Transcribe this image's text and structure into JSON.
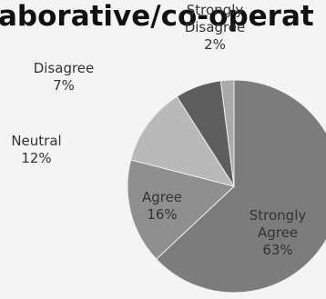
{
  "chart_data": {
    "type": "pie",
    "title": "aborative/co-operat",
    "categories": [
      "Strongly Agree",
      "Agree",
      "Neutral",
      "Disagree",
      "Strongly Disagree"
    ],
    "values": [
      63,
      16,
      12,
      7,
      2
    ],
    "value_labels": [
      "63%",
      "16%",
      "12%",
      "7%",
      "2%"
    ],
    "colors": [
      "#7c7c7c",
      "#8f8f8f",
      "#b9b9b9",
      "#5e5e5e",
      "#a9a9a9"
    ]
  }
}
